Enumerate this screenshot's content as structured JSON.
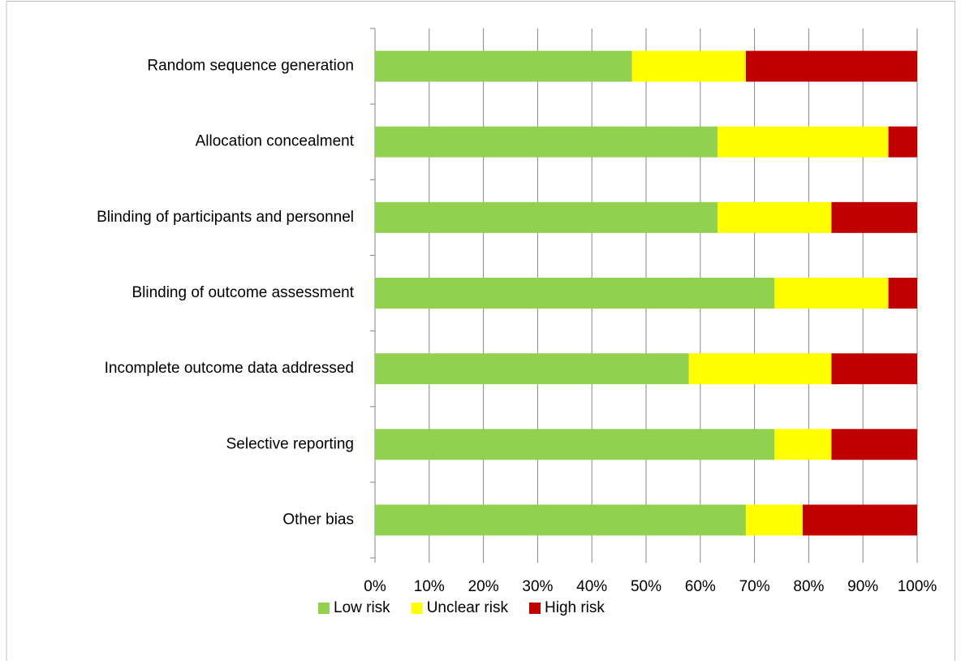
{
  "chart_data": {
    "type": "stacked-bar-horizontal",
    "categories": [
      "Random sequence generation",
      "Allocation concealment",
      "Blinding of participants and personnel",
      "Blinding of outcome assessment",
      "Incomplete outcome data addressed",
      "Selective reporting",
      "Other bias"
    ],
    "series": [
      {
        "name": "Low risk",
        "color": "#92d050",
        "values": [
          47.4,
          63.2,
          63.2,
          73.7,
          57.9,
          73.7,
          68.4
        ]
      },
      {
        "name": "Unclear risk",
        "color": "#ffff00",
        "values": [
          21.0,
          31.5,
          21.0,
          21.0,
          26.3,
          10.5,
          10.5
        ]
      },
      {
        "name": "High risk",
        "color": "#c00000",
        "values": [
          31.6,
          5.3,
          15.8,
          5.3,
          15.8,
          15.8,
          21.1
        ]
      }
    ],
    "xlim": [
      0,
      100
    ],
    "xticks": [
      {
        "value": 0,
        "label": "0%"
      },
      {
        "value": 10,
        "label": "10%"
      },
      {
        "value": 20,
        "label": "20%"
      },
      {
        "value": 30,
        "label": "30%"
      },
      {
        "value": 40,
        "label": "40%"
      },
      {
        "value": 50,
        "label": "50%"
      },
      {
        "value": 60,
        "label": "60%"
      },
      {
        "value": 70,
        "label": "70%"
      },
      {
        "value": 80,
        "label": "80%"
      },
      {
        "value": 90,
        "label": "90%"
      },
      {
        "value": 100,
        "label": "100%"
      }
    ],
    "grid": true,
    "legend": "bottom"
  }
}
